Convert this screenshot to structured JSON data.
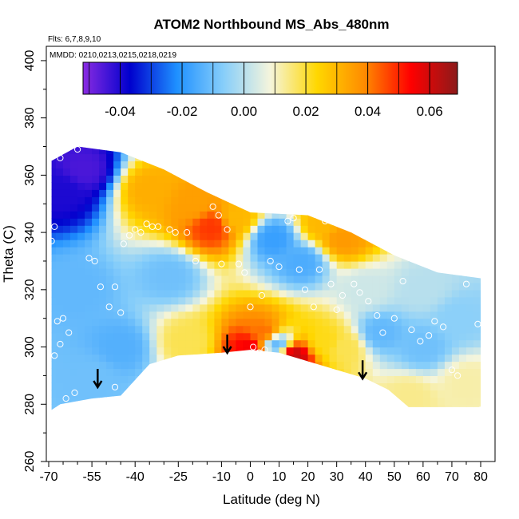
{
  "chart_data": {
    "type": "heatmap",
    "title": "ATOM2 Northbound MS_Abs_480nm",
    "annotations": {
      "flights": "Flts: 6,7,8,9,10",
      "dates": "MMDD: 0210,0213,0215,0218,0219"
    },
    "xlabel": "Latitude (deg N)",
    "ylabel": "Theta (C)",
    "xlim": [
      -70,
      82
    ],
    "ylim": [
      260,
      405
    ],
    "x_ticks": [
      -70,
      -55,
      -40,
      -25,
      -10,
      0,
      10,
      20,
      30,
      40,
      50,
      60,
      70,
      80
    ],
    "x_tick_labels": [
      "-70",
      "-55",
      "-40",
      "-25",
      "-10",
      "0",
      "10",
      "20",
      "30",
      "40",
      "50",
      "60",
      "70",
      "80"
    ],
    "y_ticks": [
      260,
      280,
      300,
      320,
      340,
      360,
      380,
      400
    ],
    "y_tick_labels": [
      "260",
      "280",
      "300",
      "320",
      "340",
      "360",
      "380",
      "400"
    ],
    "colorbar": {
      "range": [
        -0.052,
        0.069
      ],
      "ticks": [
        -0.04,
        -0.02,
        0.0,
        0.02,
        0.04,
        0.06
      ],
      "tick_labels": [
        "-0.04",
        "-0.02",
        "0.00",
        "0.02",
        "0.04",
        "0.06"
      ],
      "colors": [
        "#8a2be2",
        "#0000cd",
        "#1e90ff",
        "#87cefa",
        "#f5f5dc",
        "#ffd700",
        "#ff8c00",
        "#ff0000",
        "#8b1a1a"
      ]
    },
    "domain_outline": {
      "top": [
        [
          -69,
          365
        ],
        [
          -60,
          370
        ],
        [
          -45,
          368
        ],
        [
          -30,
          362
        ],
        [
          -15,
          354
        ],
        [
          0,
          347
        ],
        [
          20,
          346
        ],
        [
          35,
          340
        ],
        [
          50,
          332
        ],
        [
          65,
          326
        ],
        [
          80,
          324
        ]
      ],
      "bottom": [
        [
          80,
          279
        ],
        [
          70,
          279
        ],
        [
          55,
          279
        ],
        [
          48,
          285
        ],
        [
          40,
          289
        ],
        [
          30,
          292
        ],
        [
          20,
          295
        ],
        [
          10,
          298
        ],
        [
          0,
          299
        ],
        [
          -10,
          298
        ],
        [
          -25,
          297
        ],
        [
          -35,
          294
        ],
        [
          -45,
          283
        ],
        [
          -55,
          282
        ],
        [
          -66,
          280
        ],
        [
          -69,
          278
        ]
      ]
    },
    "field_sources": [
      {
        "lat": -65,
        "theta": 355,
        "value": -0.04
      },
      {
        "lat": -58,
        "theta": 362,
        "value": -0.045
      },
      {
        "lat": -60,
        "theta": 320,
        "value": -0.012
      },
      {
        "lat": -45,
        "theta": 300,
        "value": -0.014
      },
      {
        "lat": -55,
        "theta": 290,
        "value": -0.01
      },
      {
        "lat": -35,
        "theta": 355,
        "value": 0.032
      },
      {
        "lat": -20,
        "theta": 350,
        "value": 0.035
      },
      {
        "lat": -5,
        "theta": 345,
        "value": 0.03
      },
      {
        "lat": 25,
        "theta": 343,
        "value": 0.03
      },
      {
        "lat": 32,
        "theta": 338,
        "value": 0.036
      },
      {
        "lat": -13,
        "theta": 342,
        "value": 0.048
      },
      {
        "lat": 8,
        "theta": 338,
        "value": -0.018
      },
      {
        "lat": 18,
        "theta": 330,
        "value": -0.015
      },
      {
        "lat": -28,
        "theta": 325,
        "value": -0.01
      },
      {
        "lat": 5,
        "theta": 305,
        "value": 0.042
      },
      {
        "lat": 0,
        "theta": 300,
        "value": 0.055
      },
      {
        "lat": 15,
        "theta": 297,
        "value": 0.062
      },
      {
        "lat": 9,
        "theta": 301,
        "value": -0.012
      },
      {
        "lat": 26,
        "theta": 302,
        "value": 0.022
      },
      {
        "lat": 33,
        "theta": 300,
        "value": 0.018
      },
      {
        "lat": -22,
        "theta": 302,
        "value": 0.018
      },
      {
        "lat": 45,
        "theta": 305,
        "value": -0.012
      },
      {
        "lat": 60,
        "theta": 300,
        "value": -0.01
      },
      {
        "lat": 72,
        "theta": 310,
        "value": -0.006
      },
      {
        "lat": 75,
        "theta": 288,
        "value": 0.012
      },
      {
        "lat": 55,
        "theta": 283,
        "value": 0.014
      },
      {
        "lat": 40,
        "theta": 320,
        "value": 0.003
      },
      {
        "lat": 60,
        "theta": 320,
        "value": 0.0
      }
    ],
    "sample_points": [
      [
        -68,
        342
      ],
      [
        -69,
        337
      ],
      [
        -68,
        297
      ],
      [
        -67,
        309
      ],
      [
        -66,
        301
      ],
      [
        -65,
        310
      ],
      [
        -63,
        305
      ],
      [
        -64,
        282
      ],
      [
        -61,
        284
      ],
      [
        -66,
        366
      ],
      [
        -60,
        369
      ],
      [
        -56,
        331
      ],
      [
        -54,
        330
      ],
      [
        -52,
        321
      ],
      [
        -49,
        314
      ],
      [
        -47,
        321
      ],
      [
        -45,
        312
      ],
      [
        -47,
        286
      ],
      [
        -44,
        336
      ],
      [
        -42,
        339
      ],
      [
        -40,
        341
      ],
      [
        -38,
        340
      ],
      [
        -36,
        343
      ],
      [
        -34,
        342
      ],
      [
        -32,
        342
      ],
      [
        -28,
        341
      ],
      [
        -26,
        340
      ],
      [
        -22,
        340
      ],
      [
        -19,
        330
      ],
      [
        -13,
        349
      ],
      [
        -11,
        346
      ],
      [
        -8,
        341
      ],
      [
        -10,
        329
      ],
      [
        -4,
        329
      ],
      [
        -2,
        326
      ],
      [
        0,
        314
      ],
      [
        1,
        300
      ],
      [
        3,
        298
      ],
      [
        5,
        299
      ],
      [
        4,
        318
      ],
      [
        7,
        330
      ],
      [
        10,
        328
      ],
      [
        13,
        344
      ],
      [
        15,
        345
      ],
      [
        17,
        327
      ],
      [
        19,
        320
      ],
      [
        22,
        314
      ],
      [
        24,
        327
      ],
      [
        26,
        344
      ],
      [
        28,
        322
      ],
      [
        30,
        313
      ],
      [
        32,
        318
      ],
      [
        36,
        322
      ],
      [
        38,
        319
      ],
      [
        41,
        316
      ],
      [
        44,
        311
      ],
      [
        46,
        305
      ],
      [
        50,
        310
      ],
      [
        53,
        323
      ],
      [
        56,
        306
      ],
      [
        59,
        302
      ],
      [
        62,
        304
      ],
      [
        64,
        309
      ],
      [
        67,
        307
      ],
      [
        70,
        292
      ],
      [
        72,
        290
      ],
      [
        75,
        322
      ],
      [
        79,
        308
      ],
      [
        80,
        278
      ]
    ],
    "markers": [
      {
        "lat": -53,
        "theta": 289,
        "label": "arrow"
      },
      {
        "lat": -8,
        "theta": 301,
        "label": "arrow"
      },
      {
        "lat": 39,
        "theta": 292,
        "label": "arrow"
      }
    ]
  }
}
